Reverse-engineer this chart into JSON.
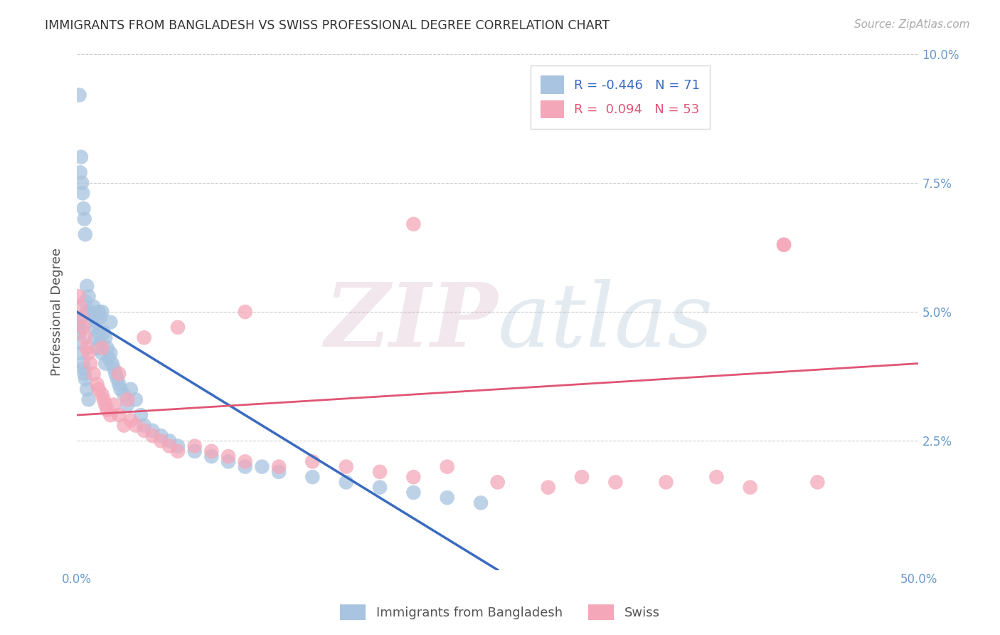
{
  "title": "IMMIGRANTS FROM BANGLADESH VS SWISS PROFESSIONAL DEGREE CORRELATION CHART",
  "source": "Source: ZipAtlas.com",
  "ylabel": "Professional Degree",
  "xlim": [
    0,
    50
  ],
  "ylim": [
    0,
    10
  ],
  "blue_R": "-0.446",
  "blue_N": "71",
  "pink_R": "0.094",
  "pink_N": "53",
  "blue_color": "#a8c4e0",
  "pink_color": "#f4a7b9",
  "blue_line_color": "#3a6bbf",
  "pink_line_color": "#e05575",
  "legend_label_blue": "Immigrants from Bangladesh",
  "legend_label_pink": "Swiss",
  "axis_tick_color": "#6699cc",
  "grid_color": "#cccccc",
  "blue_line_start_x": 0,
  "blue_line_start_y": 5.0,
  "blue_line_end_x": 25,
  "blue_line_end_y": 0.0,
  "pink_line_start_x": 0,
  "pink_line_start_y": 3.0,
  "pink_line_end_x": 50,
  "pink_line_end_y": 4.0,
  "blue_x": [
    0.15,
    0.2,
    0.25,
    0.3,
    0.35,
    0.4,
    0.45,
    0.5,
    0.5,
    0.6,
    0.6,
    0.7,
    0.8,
    0.9,
    1.0,
    1.0,
    1.1,
    1.2,
    1.2,
    1.3,
    1.3,
    1.4,
    1.4,
    1.5,
    1.5,
    1.6,
    1.7,
    1.7,
    1.8,
    1.9,
    2.0,
    2.0,
    2.1,
    2.2,
    2.3,
    2.4,
    2.5,
    2.6,
    2.8,
    3.0,
    3.2,
    3.5,
    3.8,
    4.0,
    4.5,
    5.0,
    5.5,
    6.0,
    7.0,
    8.0,
    9.0,
    10.0,
    11.0,
    12.0,
    14.0,
    16.0,
    18.0,
    20.0,
    22.0,
    24.0,
    0.1,
    0.15,
    0.2,
    0.25,
    0.3,
    0.35,
    0.4,
    0.45,
    0.5,
    0.6,
    0.7
  ],
  "blue_y": [
    9.2,
    7.7,
    8.0,
    7.5,
    7.3,
    7.0,
    6.8,
    6.5,
    5.2,
    5.0,
    5.5,
    5.3,
    5.0,
    4.9,
    4.7,
    5.1,
    4.5,
    4.8,
    4.3,
    4.6,
    5.0,
    4.4,
    4.9,
    4.2,
    5.0,
    4.6,
    4.0,
    4.5,
    4.3,
    4.1,
    4.2,
    4.8,
    4.0,
    3.9,
    3.8,
    3.7,
    3.6,
    3.5,
    3.4,
    3.2,
    3.5,
    3.3,
    3.0,
    2.8,
    2.7,
    2.6,
    2.5,
    2.4,
    2.3,
    2.2,
    2.1,
    2.0,
    2.0,
    1.9,
    1.8,
    1.7,
    1.6,
    1.5,
    1.4,
    1.3,
    4.8,
    4.6,
    4.7,
    4.4,
    4.2,
    4.0,
    3.9,
    3.8,
    3.7,
    3.5,
    3.3
  ],
  "pink_x": [
    0.1,
    0.2,
    0.3,
    0.4,
    0.5,
    0.6,
    0.7,
    0.8,
    1.0,
    1.2,
    1.3,
    1.5,
    1.6,
    1.7,
    1.8,
    2.0,
    2.2,
    2.5,
    2.8,
    3.0,
    3.2,
    3.5,
    4.0,
    4.5,
    5.0,
    5.5,
    6.0,
    7.0,
    8.0,
    9.0,
    10.0,
    12.0,
    14.0,
    16.0,
    18.0,
    20.0,
    22.0,
    25.0,
    28.0,
    30.0,
    32.0,
    35.0,
    38.0,
    40.0,
    42.0,
    44.0,
    1.5,
    2.5,
    4.0,
    6.0,
    10.0,
    20.0,
    42.0
  ],
  "pink_y": [
    5.3,
    5.1,
    4.9,
    4.7,
    4.5,
    4.3,
    4.2,
    4.0,
    3.8,
    3.6,
    3.5,
    3.4,
    3.3,
    3.2,
    3.1,
    3.0,
    3.2,
    3.0,
    2.8,
    3.3,
    2.9,
    2.8,
    2.7,
    2.6,
    2.5,
    2.4,
    2.3,
    2.4,
    2.3,
    2.2,
    2.1,
    2.0,
    2.1,
    2.0,
    1.9,
    1.8,
    2.0,
    1.7,
    1.6,
    1.8,
    1.7,
    1.7,
    1.8,
    1.6,
    6.3,
    1.7,
    4.3,
    3.8,
    4.5,
    4.7,
    5.0,
    6.7,
    6.3
  ]
}
